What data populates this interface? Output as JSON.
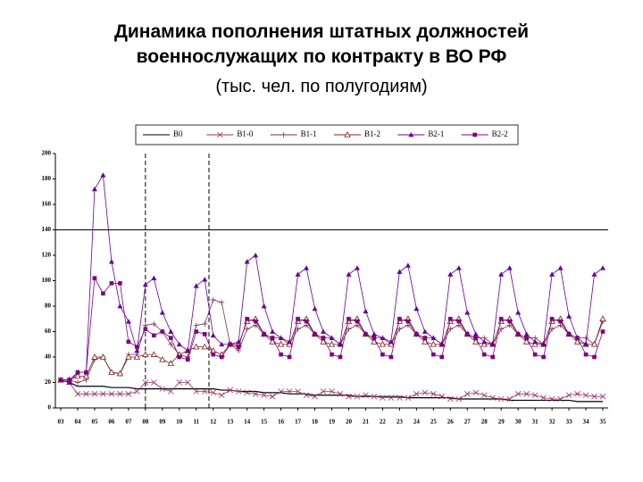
{
  "chart_data": {
    "type": "line",
    "title": "Динамика пополнения штатных должностей военнослужащих по контракту в ВО РФ",
    "subtitle": "(тыс. чел. по полугодиям)",
    "categories": [
      "03",
      null,
      "04",
      null,
      "05",
      null,
      "06",
      null,
      "07",
      null,
      "08",
      null,
      "09",
      null,
      "10",
      null,
      "11",
      null,
      "12",
      null,
      "13",
      null,
      "14",
      null,
      "15",
      null,
      "16",
      null,
      "17",
      null,
      "18",
      null,
      "19",
      null,
      "20",
      null,
      "21",
      null,
      "22",
      null,
      "23",
      null,
      "24",
      null,
      "25",
      null,
      "26",
      null,
      "27",
      null,
      "28",
      null,
      "29",
      null,
      "30",
      null,
      "31",
      null,
      "32",
      null,
      "33",
      null,
      "34",
      null,
      "35"
    ],
    "ylim": [
      0,
      200
    ],
    "yticks": [
      0,
      20,
      40,
      60,
      80,
      100,
      120,
      140,
      160,
      180,
      200
    ],
    "hline": 140,
    "vlines": [
      10,
      17.5
    ],
    "series": [
      {
        "name": "B0",
        "color": "#000000",
        "marker": "none",
        "values": [
          22,
          20,
          17,
          17,
          17,
          17,
          16,
          16,
          16,
          15,
          15,
          15,
          15,
          15,
          15,
          15,
          15,
          15,
          15,
          14,
          14,
          13,
          13,
          13,
          12,
          12,
          12,
          11,
          11,
          11,
          10,
          10,
          10,
          10,
          10,
          9,
          9,
          9,
          9,
          9,
          9,
          8,
          8,
          8,
          8,
          8,
          8,
          7,
          7,
          7,
          7,
          7,
          7,
          6,
          6,
          6,
          6,
          6,
          6,
          6,
          6,
          5,
          5,
          5,
          5
        ]
      },
      {
        "name": "B1-0",
        "color": "#993366",
        "marker": "x",
        "values": [
          22,
          20,
          11,
          11,
          11,
          11,
          11,
          11,
          11,
          13,
          20,
          20,
          15,
          13,
          20,
          20,
          13,
          13,
          12,
          10,
          14,
          13,
          12,
          11,
          10,
          9,
          13,
          13,
          13,
          10,
          9,
          13,
          13,
          11,
          9,
          9,
          10,
          9,
          8,
          8,
          8,
          8,
          11,
          12,
          11,
          9,
          7,
          7,
          11,
          12,
          10,
          8,
          7,
          7,
          11,
          11,
          10,
          8,
          7,
          7,
          10,
          11,
          10,
          9,
          9
        ]
      },
      {
        "name": "B1-1",
        "color": "#7a3050",
        "marker": "star",
        "values": [
          22,
          22,
          20,
          22,
          38,
          40,
          28,
          27,
          42,
          42,
          65,
          66,
          60,
          50,
          42,
          40,
          65,
          66,
          85,
          83,
          50,
          45,
          62,
          65,
          58,
          55,
          55,
          50,
          62,
          65,
          58,
          55,
          55,
          50,
          62,
          65,
          58,
          55,
          55,
          50,
          62,
          65,
          58,
          55,
          55,
          50,
          62,
          65,
          58,
          55,
          55,
          50,
          62,
          65,
          58,
          55,
          55,
          50,
          62,
          65,
          58,
          55,
          55,
          50,
          68
        ]
      },
      {
        "name": "B1-2",
        "color": "#802020",
        "marker": "triangle-open",
        "values": [
          22,
          22,
          25,
          25,
          40,
          40,
          28,
          27,
          40,
          40,
          42,
          42,
          38,
          35,
          42,
          45,
          48,
          48,
          45,
          42,
          50,
          50,
          68,
          70,
          58,
          52,
          50,
          50,
          68,
          70,
          58,
          52,
          50,
          50,
          68,
          70,
          58,
          52,
          50,
          50,
          68,
          70,
          58,
          52,
          50,
          50,
          68,
          70,
          58,
          52,
          50,
          50,
          68,
          70,
          58,
          52,
          50,
          50,
          68,
          70,
          58,
          52,
          50,
          50,
          70
        ]
      },
      {
        "name": "B2-1",
        "color": "#660099",
        "marker": "triangle",
        "values": [
          22,
          20,
          28,
          28,
          172,
          183,
          115,
          80,
          68,
          45,
          97,
          102,
          75,
          60,
          50,
          45,
          96,
          101,
          57,
          50,
          50,
          52,
          115,
          120,
          80,
          60,
          55,
          52,
          105,
          110,
          78,
          60,
          55,
          50,
          105,
          110,
          76,
          58,
          55,
          52,
          107,
          112,
          78,
          60,
          55,
          50,
          105,
          110,
          75,
          58,
          52,
          50,
          105,
          110,
          75,
          58,
          52,
          50,
          105,
          110,
          72,
          55,
          50,
          105,
          110
        ]
      },
      {
        "name": "B2-2",
        "color": "#800080",
        "marker": "square",
        "values": [
          22,
          22,
          28,
          28,
          102,
          90,
          98,
          98,
          52,
          48,
          62,
          57,
          60,
          55,
          40,
          38,
          60,
          58,
          42,
          40,
          50,
          48,
          70,
          68,
          58,
          55,
          42,
          40,
          70,
          68,
          58,
          55,
          42,
          40,
          70,
          68,
          58,
          55,
          42,
          40,
          70,
          68,
          58,
          55,
          42,
          40,
          70,
          68,
          58,
          55,
          42,
          40,
          70,
          68,
          58,
          55,
          42,
          40,
          70,
          68,
          58,
          55,
          42,
          40,
          60
        ]
      }
    ]
  }
}
